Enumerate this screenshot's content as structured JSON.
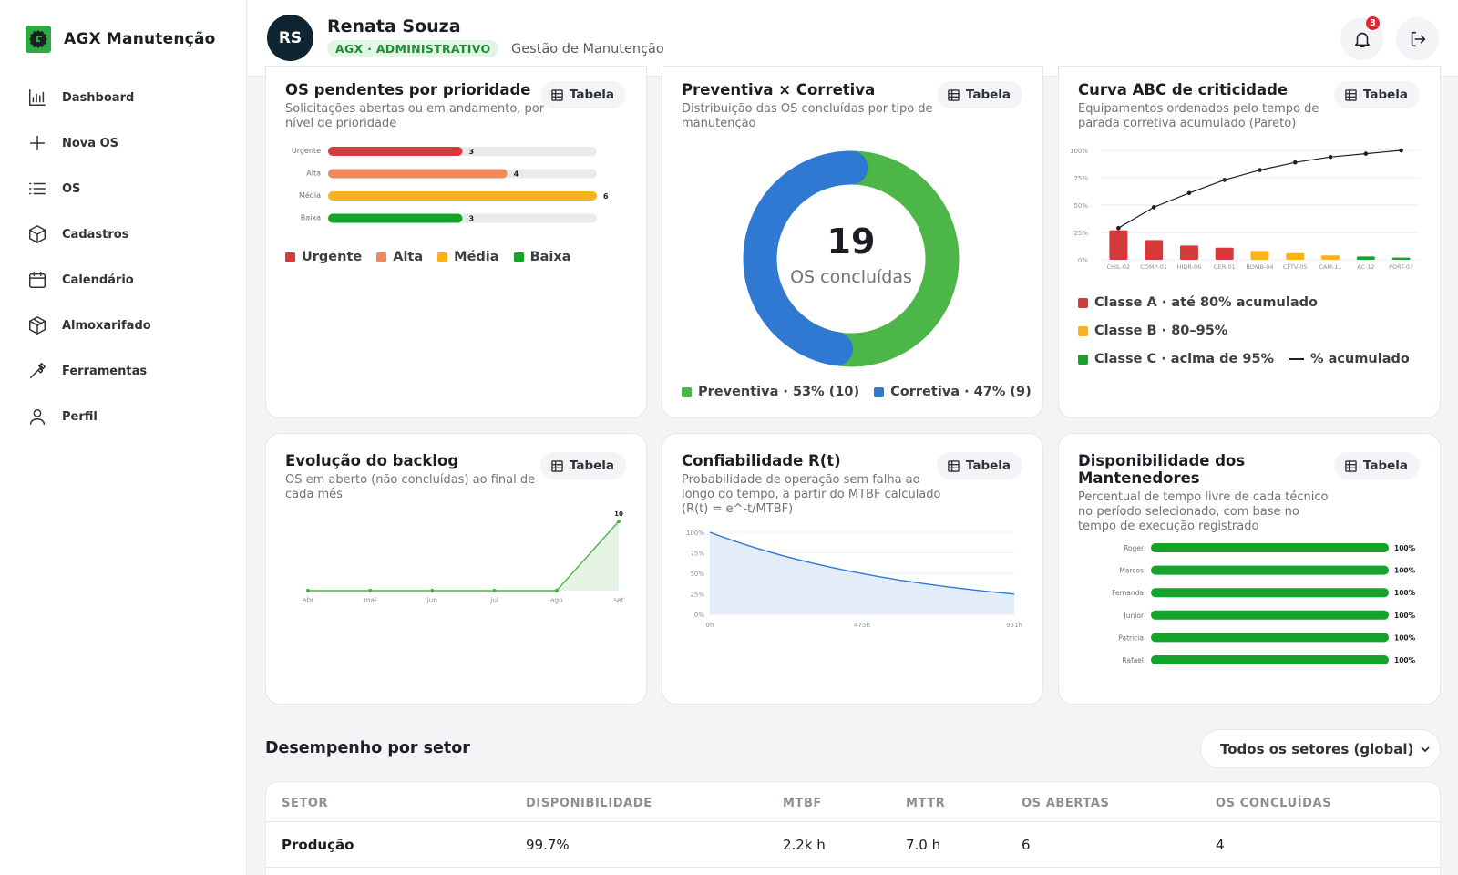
{
  "app": {
    "name": "AGX Manutenção"
  },
  "sidebar": {
    "items": [
      {
        "label": "Dashboard",
        "icon": "bar-chart-icon"
      },
      {
        "label": "Nova OS",
        "icon": "plus-icon"
      },
      {
        "label": "OS",
        "icon": "list-icon"
      },
      {
        "label": "Cadastros",
        "icon": "box-icon"
      },
      {
        "label": "Calendário",
        "icon": "calendar-icon"
      },
      {
        "label": "Almoxarifado",
        "icon": "package-icon"
      },
      {
        "label": "Ferramentas",
        "icon": "wrench-icon"
      },
      {
        "label": "Perfil",
        "icon": "user-icon"
      }
    ]
  },
  "header": {
    "initials": "RS",
    "user_name": "Renata Souza",
    "role": "AGX · ADMINISTRATIVO",
    "subtitle": "Gestão de Manutenção",
    "notifications": "3"
  },
  "common": {
    "table_label": "Tabela"
  },
  "colors": {
    "urgente": "#d63a3a",
    "alta": "#ee8a5e",
    "media": "#f7b21c",
    "baixa": "#14a32b",
    "preventiva": "#4db648",
    "corretiva": "#2f79d3"
  },
  "cards": {
    "pendentes": {
      "title": "OS pendentes por prioridade",
      "desc": "Solicitações abertas ou em andamento, por nível de prioridade"
    },
    "prevcorr": {
      "title": "Preventiva × Corretiva",
      "desc": "Distribuição das OS concluídas por tipo de manutenção"
    },
    "abc": {
      "title": "Curva ABC de criticidade",
      "desc": "Equipamentos ordenados pelo tempo de parada corretiva acumulado (Pareto)"
    },
    "backlog": {
      "title": "Evolução do backlog",
      "desc": "OS em aberto (não concluídas) ao final de cada mês"
    },
    "confiab": {
      "title": "Confiabilidade R(t)",
      "desc": "Probabilidade de operação sem falha ao longo do tempo, a partir do MTBF calculado (R(t) = e^-t/MTBF)"
    },
    "disp": {
      "title": "Disponibilidade dos Mantenedores",
      "desc": "Percentual de tempo livre de cada técnico no período selecionado, com base no tempo de execução registrado"
    }
  },
  "chart_data": [
    {
      "id": "pendentes",
      "type": "bar",
      "orientation": "horizontal",
      "categories": [
        "Urgente",
        "Alta",
        "Média",
        "Baixa"
      ],
      "values": [
        3,
        4,
        6,
        3
      ],
      "xlim": [
        0,
        6
      ],
      "legend": [
        "Urgente",
        "Alta",
        "Média",
        "Baixa"
      ]
    },
    {
      "id": "prevcorr",
      "type": "pie",
      "center_value": "19",
      "center_label": "OS concluídas",
      "slices": [
        {
          "name": "Preventiva",
          "value": 10,
          "legend": "Preventiva · 53% (10)"
        },
        {
          "name": "Corretiva",
          "value": 9,
          "legend": "Corretiva · 47% (9)"
        }
      ]
    },
    {
      "id": "abc",
      "type": "bar",
      "categories": [
        "CHIL-02",
        "COMP-01",
        "HIDR-06",
        "GER-01",
        "BOMB-04",
        "CFTV-05",
        "CAM-11",
        "AC-12",
        "PORT-07"
      ],
      "values": [
        27,
        18,
        13,
        11,
        8,
        6,
        4,
        3,
        2
      ],
      "classes": [
        "A",
        "A",
        "A",
        "A",
        "B",
        "B",
        "B",
        "C",
        "C"
      ],
      "cumulative": [
        29,
        48,
        61,
        73,
        82,
        89,
        94,
        97,
        100
      ],
      "ylim": [
        0,
        100
      ],
      "yticks": [
        "0%",
        "25%",
        "50%",
        "75%",
        "100%"
      ],
      "legend": [
        "Classe A · até 80% acumulado",
        "Classe B · 80–95%",
        "Classe C · acima de 95%",
        "% acumulado"
      ]
    },
    {
      "id": "backlog",
      "type": "area",
      "categories": [
        "abr",
        "mai",
        "jun",
        "jul",
        "ago",
        "set"
      ],
      "values": [
        0,
        0,
        0,
        0,
        0,
        10
      ],
      "last_label": "10",
      "ylim": [
        0,
        10
      ]
    },
    {
      "id": "confiab",
      "type": "area",
      "mtbf_h": 680,
      "xlim": [
        0,
        951
      ],
      "xticks": [
        "0h",
        "475h",
        "951h"
      ],
      "yticks": [
        "0%",
        "25%",
        "50%",
        "75%",
        "100%"
      ],
      "ylim": [
        0,
        100
      ]
    },
    {
      "id": "disp",
      "type": "bar",
      "orientation": "horizontal",
      "categories": [
        "Roger",
        "Marcos",
        "Fernanda",
        "Junior",
        "Patricia",
        "Rafael"
      ],
      "values": [
        100,
        100,
        100,
        100,
        100,
        100
      ],
      "value_labels": [
        "100%",
        "100%",
        "100%",
        "100%",
        "100%",
        "100%"
      ],
      "xlim": [
        0,
        100
      ]
    }
  ],
  "sector": {
    "title": "Desempenho por setor",
    "select_value": "Todos os setores (global)",
    "columns": [
      "SETOR",
      "DISPONIBILIDADE",
      "MTBF",
      "MTTR",
      "OS ABERTAS",
      "OS CONCLUÍDAS"
    ],
    "rows": [
      [
        "Produção",
        "99.7%",
        "2.2k h",
        "7.0 h",
        "6",
        "4"
      ]
    ]
  }
}
